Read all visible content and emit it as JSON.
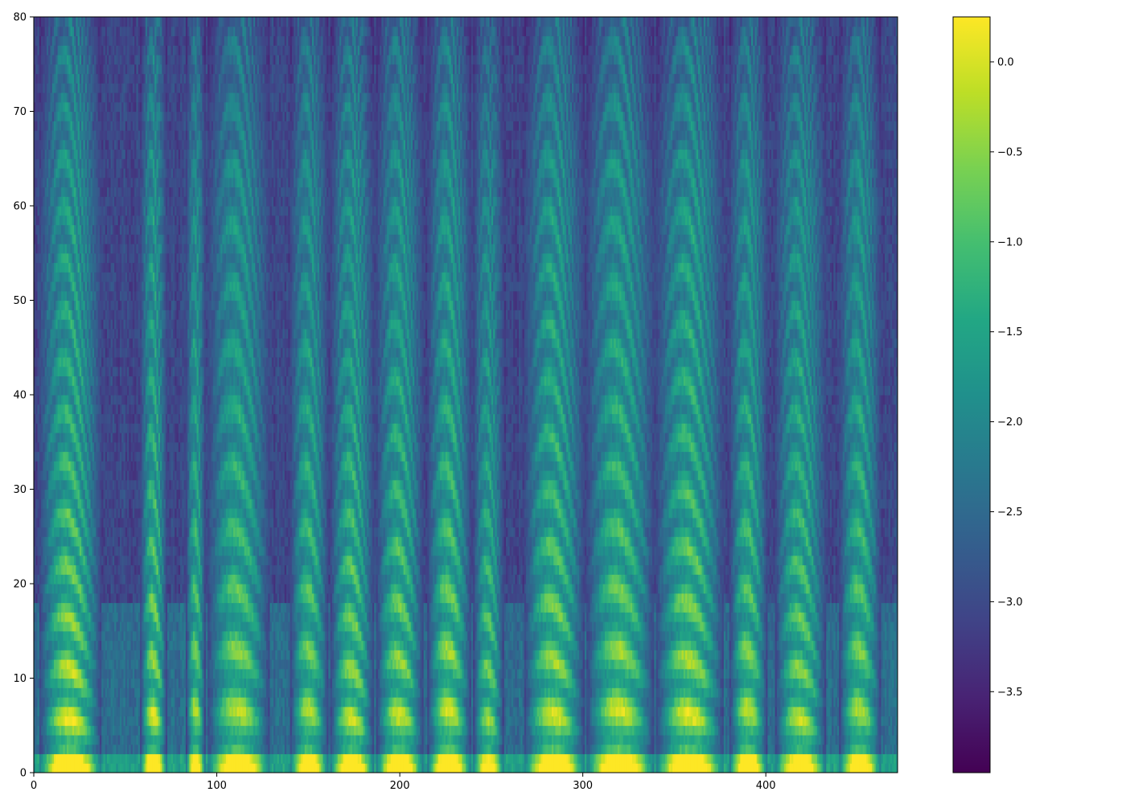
{
  "chart_data": [
    {
      "type": "heatmap",
      "title": "",
      "xlabel": "",
      "ylabel": "",
      "xlim": [
        0,
        472
      ],
      "ylim": [
        0,
        80
      ],
      "x_ticks": [
        0,
        100,
        200,
        300,
        400
      ],
      "x_tick_labels": [
        "0",
        "100",
        "200",
        "300",
        "400"
      ],
      "y_ticks": [
        0,
        10,
        20,
        30,
        40,
        50,
        60,
        70,
        80
      ],
      "y_tick_labels": [
        "0",
        "10",
        "20",
        "30",
        "40",
        "50",
        "60",
        "70",
        "80"
      ],
      "grid": false,
      "colormap": "viridis",
      "value_range": [
        -3.95,
        0.25
      ],
      "n_frames": 472,
      "n_bins": 80,
      "events": [
        {
          "x0": 3,
          "x1": 36,
          "peak": 0.1
        },
        {
          "x0": 58,
          "x1": 72,
          "peak": -0.1
        },
        {
          "x0": 83,
          "x1": 93,
          "peak": -0.4
        },
        {
          "x0": 95,
          "x1": 128,
          "peak": -0.3
        },
        {
          "x0": 140,
          "x1": 160,
          "peak": -0.4
        },
        {
          "x0": 162,
          "x1": 185,
          "peak": -0.2
        },
        {
          "x0": 187,
          "x1": 212,
          "peak": -0.2
        },
        {
          "x0": 215,
          "x1": 238,
          "peak": -0.1
        },
        {
          "x0": 240,
          "x1": 256,
          "peak": -0.6
        },
        {
          "x0": 268,
          "x1": 300,
          "peak": -0.1
        },
        {
          "x0": 302,
          "x1": 338,
          "peak": -0.1
        },
        {
          "x0": 340,
          "x1": 376,
          "peak": 0.0
        },
        {
          "x0": 380,
          "x1": 400,
          "peak": -0.3
        },
        {
          "x0": 405,
          "x1": 432,
          "peak": -0.3
        },
        {
          "x0": 440,
          "x1": 462,
          "peak": -0.4
        }
      ]
    },
    {
      "type": "colorbar",
      "range": [
        -3.95,
        0.25
      ],
      "ticks": [
        0.0,
        -0.5,
        -1.0,
        -1.5,
        -2.0,
        -2.5,
        -3.0,
        -3.5
      ],
      "tick_labels": [
        "0.0",
        "−0.5",
        "−1.0",
        "−1.5",
        "−2.0",
        "−2.5",
        "−3.0",
        "−3.5"
      ]
    }
  ]
}
